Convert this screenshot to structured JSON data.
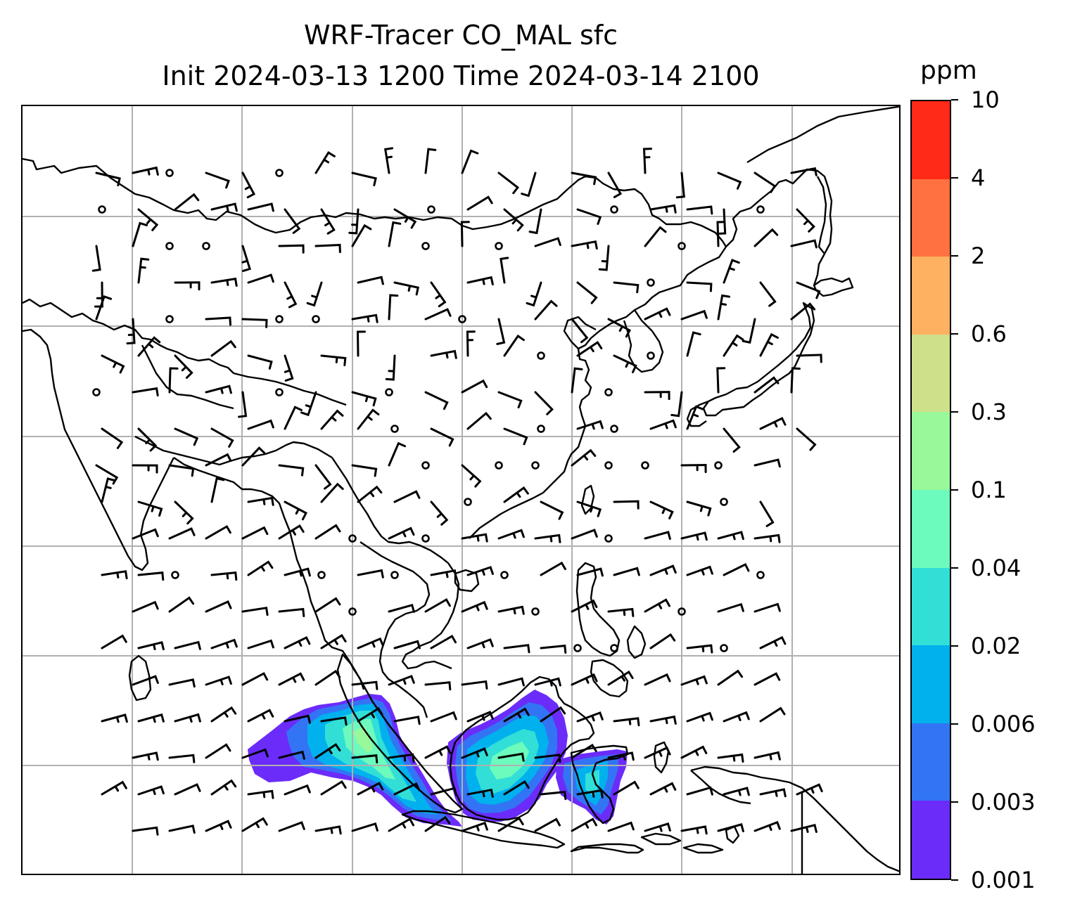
{
  "title": {
    "line1": "WRF-Tracer CO_MAL sfc",
    "line2": "Init 2024-03-13 1200 Time 2024-03-14 2100"
  },
  "colorbar": {
    "unit": "ppm",
    "levels": [
      "0.001",
      "0.003",
      "0.006",
      "0.02",
      "0.04",
      "0.1",
      "0.3",
      "0.6",
      "2",
      "4",
      "10"
    ],
    "colors": [
      "#6b2cfa",
      "#3374f5",
      "#00b1ee",
      "#32dfd7",
      "#6cfbbd",
      "#98f89a",
      "#cfe08a",
      "#fdb161",
      "#ff7140",
      "#ff2a17"
    ]
  },
  "map": {
    "gridlines": true,
    "gridline_color": "#b0b0b0",
    "coastline_color": "#000000",
    "field": "CO_MAL surface tracer",
    "wind_barbs": true
  }
}
